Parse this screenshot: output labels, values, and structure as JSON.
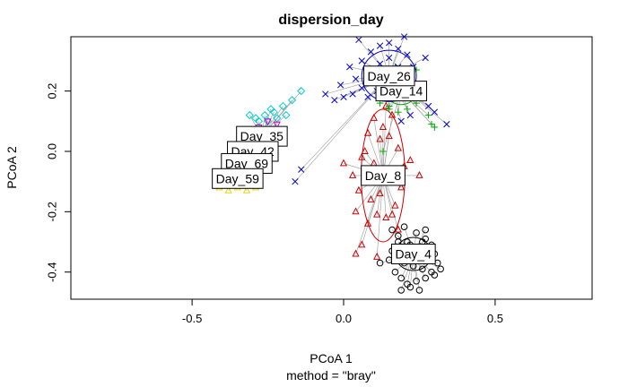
{
  "chart_data": {
    "type": "scatter",
    "title": "dispersion_day",
    "xlabel": "PCoA 1",
    "ylabel": "PCoA 2",
    "sub": "method = \"bray\"",
    "xlim": [
      -0.9,
      0.82
    ],
    "ylim": [
      -0.49,
      0.38
    ],
    "xticks": [
      -0.5,
      0.0,
      0.5
    ],
    "xtick_labels": [
      "-0.5",
      "0.0",
      "0.5"
    ],
    "yticks": [
      -0.4,
      -0.2,
      0.0,
      0.2
    ],
    "ytick_labels": [
      "-0.4",
      "-0.2",
      "0.0",
      "0.2"
    ],
    "grid": false,
    "groups": [
      {
        "name": "Day_4",
        "color": "#000000",
        "marker": "circle",
        "centroid": [
          0.23,
          -0.34
        ],
        "ellipse": {
          "rx": 0.06,
          "ry": 0.055
        },
        "points": [
          [
            0.16,
            -0.26
          ],
          [
            0.2,
            -0.25
          ],
          [
            0.24,
            -0.27
          ],
          [
            0.27,
            -0.29
          ],
          [
            0.29,
            -0.31
          ],
          [
            0.3,
            -0.34
          ],
          [
            0.31,
            -0.37
          ],
          [
            0.29,
            -0.4
          ],
          [
            0.27,
            -0.42
          ],
          [
            0.24,
            -0.43
          ],
          [
            0.21,
            -0.44
          ],
          [
            0.19,
            -0.42
          ],
          [
            0.17,
            -0.4
          ],
          [
            0.15,
            -0.36
          ],
          [
            0.16,
            -0.33
          ],
          [
            0.18,
            -0.3
          ],
          [
            0.22,
            -0.31
          ],
          [
            0.25,
            -0.33
          ],
          [
            0.28,
            -0.36
          ],
          [
            0.26,
            -0.39
          ],
          [
            0.23,
            -0.38
          ],
          [
            0.2,
            -0.37
          ],
          [
            0.21,
            -0.3
          ],
          [
            0.26,
            -0.3
          ],
          [
            0.3,
            -0.41
          ],
          [
            0.22,
            -0.45
          ],
          [
            0.12,
            -0.37
          ],
          [
            0.18,
            -0.28
          ],
          [
            0.27,
            -0.26
          ],
          [
            0.32,
            -0.39
          ],
          [
            0.25,
            -0.46
          ],
          [
            0.19,
            -0.46
          ]
        ]
      },
      {
        "name": "Day_8",
        "color": "#cc0000",
        "marker": "triangle",
        "centroid": [
          0.13,
          -0.08
        ],
        "ellipse": {
          "rx": 0.072,
          "ry": 0.22
        },
        "points": [
          [
            0.0,
            -0.04
          ],
          [
            0.03,
            -0.08
          ],
          [
            0.06,
            -0.02
          ],
          [
            0.05,
            -0.13
          ],
          [
            0.09,
            -0.16
          ],
          [
            0.11,
            -0.21
          ],
          [
            0.14,
            -0.22
          ],
          [
            0.17,
            -0.18
          ],
          [
            0.19,
            -0.12
          ],
          [
            0.2,
            -0.05
          ],
          [
            0.18,
            0.01
          ],
          [
            0.15,
            0.05
          ],
          [
            0.13,
            0.08
          ],
          [
            0.1,
            0.11
          ],
          [
            0.08,
            0.06
          ],
          [
            0.07,
            0.0
          ],
          [
            0.1,
            -0.04
          ],
          [
            0.13,
            -0.1
          ],
          [
            0.16,
            -0.08
          ],
          [
            0.12,
            -0.14
          ],
          [
            0.09,
            -0.1
          ],
          [
            0.16,
            0.12
          ],
          [
            0.14,
            0.15
          ],
          [
            0.12,
            0.04
          ],
          [
            0.22,
            -0.03
          ],
          [
            0.25,
            -0.08
          ],
          [
            0.04,
            -0.2
          ],
          [
            0.08,
            -0.24
          ],
          [
            0.06,
            -0.31
          ],
          [
            0.04,
            -0.34
          ],
          [
            0.18,
            -0.26
          ],
          [
            0.11,
            -0.35
          ],
          [
            0.16,
            -0.21
          ]
        ]
      },
      {
        "name": "Day_14",
        "color": "#00aa00",
        "marker": "plus",
        "centroid": [
          0.19,
          0.2
        ],
        "ellipse": {
          "rx": 0.05,
          "ry": 0.045
        },
        "points": [
          [
            0.12,
            0.16
          ],
          [
            0.15,
            0.14
          ],
          [
            0.18,
            0.13
          ],
          [
            0.21,
            0.14
          ],
          [
            0.24,
            0.16
          ],
          [
            0.26,
            0.19
          ],
          [
            0.25,
            0.22
          ],
          [
            0.22,
            0.24
          ],
          [
            0.19,
            0.25
          ],
          [
            0.16,
            0.24
          ],
          [
            0.13,
            0.22
          ],
          [
            0.14,
            0.19
          ],
          [
            0.17,
            0.18
          ],
          [
            0.2,
            0.18
          ],
          [
            0.23,
            0.2
          ],
          [
            0.21,
            0.21
          ],
          [
            0.29,
            0.09
          ],
          [
            0.3,
            0.08
          ],
          [
            0.24,
            0.27
          ],
          [
            0.17,
            0.28
          ],
          [
            0.28,
            0.12
          ],
          [
            0.13,
            0.0
          ],
          [
            0.15,
            0.15
          ]
        ]
      },
      {
        "name": "Day_26",
        "color": "#0000cc",
        "marker": "x",
        "centroid": [
          0.15,
          0.25
        ],
        "ellipse": {
          "rx": 0.09,
          "ry": 0.085
        },
        "points": [
          [
            0.06,
            0.3
          ],
          [
            0.09,
            0.33
          ],
          [
            0.12,
            0.35
          ],
          [
            0.15,
            0.36
          ],
          [
            0.18,
            0.34
          ],
          [
            0.21,
            0.32
          ],
          [
            0.23,
            0.28
          ],
          [
            0.2,
            0.25
          ],
          [
            0.17,
            0.23
          ],
          [
            0.14,
            0.22
          ],
          [
            0.11,
            0.2
          ],
          [
            0.08,
            0.18
          ],
          [
            0.06,
            0.21
          ],
          [
            0.04,
            0.24
          ],
          [
            0.03,
            0.19
          ],
          [
            0.0,
            0.18
          ],
          [
            -0.03,
            0.17
          ],
          [
            -0.06,
            0.19
          ],
          [
            0.09,
            0.27
          ],
          [
            0.12,
            0.29
          ],
          [
            0.15,
            0.31
          ],
          [
            0.18,
            0.28
          ],
          [
            0.1,
            0.24
          ],
          [
            0.13,
            0.26
          ],
          [
            0.02,
            0.28
          ],
          [
            0.24,
            0.18
          ],
          [
            0.28,
            0.15
          ],
          [
            0.3,
            0.13
          ],
          [
            0.34,
            0.09
          ],
          [
            0.26,
            0.22
          ],
          [
            0.22,
            0.12
          ],
          [
            0.19,
            0.1
          ],
          [
            -0.14,
            -0.06
          ],
          [
            -0.16,
            -0.1
          ],
          [
            0.05,
            0.37
          ],
          [
            0.2,
            0.38
          ],
          [
            0.27,
            0.31
          ],
          [
            -0.01,
            0.22
          ]
        ]
      },
      {
        "name": "Day_35",
        "color": "#00cccc",
        "marker": "diamond",
        "centroid": [
          -0.27,
          0.05
        ],
        "ellipse": {
          "rx": 0.0,
          "ry": 0.0
        },
        "points": [
          [
            -0.29,
            0.11
          ],
          [
            -0.26,
            0.12
          ],
          [
            -0.23,
            0.13
          ],
          [
            -0.2,
            0.15
          ],
          [
            -0.17,
            0.17
          ],
          [
            -0.14,
            0.2
          ],
          [
            -0.28,
            0.1
          ],
          [
            -0.25,
            0.1
          ],
          [
            -0.22,
            0.11
          ],
          [
            -0.31,
            0.12
          ],
          [
            -0.24,
            0.14
          ],
          [
            -0.19,
            0.12
          ]
        ]
      },
      {
        "name": "Day_42",
        "color": "#cc00cc",
        "marker": "triangle-down",
        "centroid": [
          -0.3,
          0.0
        ],
        "ellipse": {
          "rx": 0.0,
          "ry": 0.0
        },
        "points": [
          [
            -0.28,
            0.08
          ],
          [
            -0.25,
            0.1
          ],
          [
            -0.22,
            0.09
          ],
          [
            -0.3,
            0.06
          ],
          [
            -0.33,
            0.07
          ],
          [
            -0.26,
            0.05
          ],
          [
            -0.29,
            0.03
          ],
          [
            -0.24,
            0.07
          ],
          [
            -0.31,
            0.02
          ]
        ]
      },
      {
        "name": "Day_69",
        "color": "#888888",
        "marker": "circle",
        "centroid": [
          -0.32,
          -0.04
        ],
        "ellipse": {
          "rx": 0.0,
          "ry": 0.0
        },
        "points": [
          [
            -0.35,
            -0.02
          ],
          [
            -0.3,
            -0.01
          ],
          [
            -0.28,
            -0.03
          ],
          [
            -0.34,
            -0.05
          ]
        ]
      },
      {
        "name": "Day_59",
        "color": "#e6d800",
        "marker": "triangle",
        "centroid": [
          -0.35,
          -0.09
        ],
        "ellipse": {
          "rx": 0.0,
          "ry": 0.0
        },
        "points": [
          [
            -0.41,
            -0.12
          ],
          [
            -0.38,
            -0.13
          ],
          [
            -0.35,
            -0.12
          ],
          [
            -0.32,
            -0.13
          ],
          [
            -0.29,
            -0.12
          ],
          [
            -0.4,
            -0.1
          ],
          [
            -0.36,
            -0.11
          ],
          [
            -0.33,
            -0.1
          ]
        ]
      }
    ]
  }
}
